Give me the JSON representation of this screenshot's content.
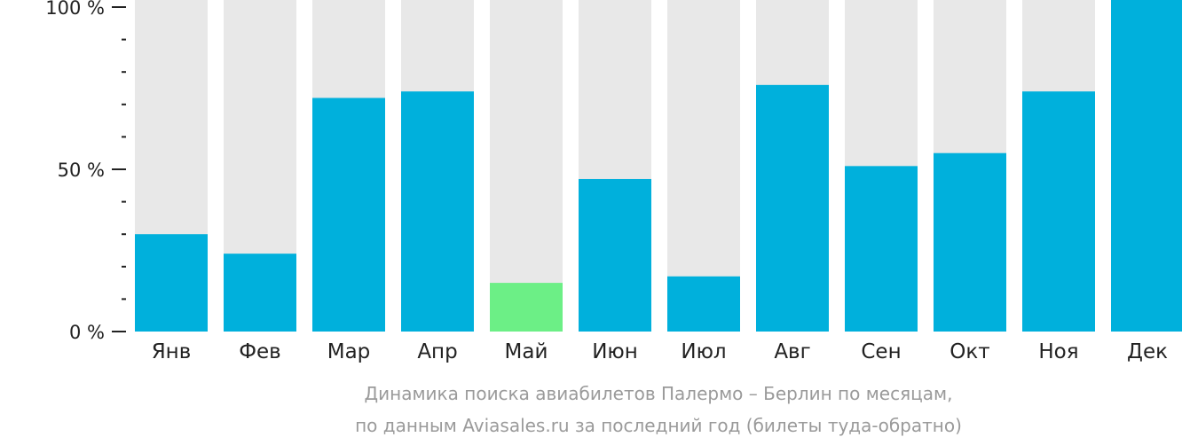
{
  "chart_data": {
    "type": "bar",
    "categories": [
      "Янв",
      "Фев",
      "Мар",
      "Апр",
      "Май",
      "Июн",
      "Июл",
      "Авг",
      "Сен",
      "Окт",
      "Ноя",
      "Дек"
    ],
    "values": [
      30,
      24,
      72,
      74,
      15,
      47,
      17,
      76,
      51,
      55,
      74,
      100
    ],
    "highlight_index": 4,
    "ylim": [
      0,
      100
    ],
    "yticks": [
      "0 %",
      "50 %",
      "100 %"
    ],
    "colors": {
      "bar": "#00b0dc",
      "highlight": "#6cef86",
      "background_bar": "#e8e8e8",
      "axis": "#222222"
    }
  },
  "caption": {
    "line1": "Динамика поиска авиабилетов Палермо – Берлин по месяцам,",
    "line2": "по данным Aviasales.ru за последний год (билеты туда-обратно)"
  }
}
